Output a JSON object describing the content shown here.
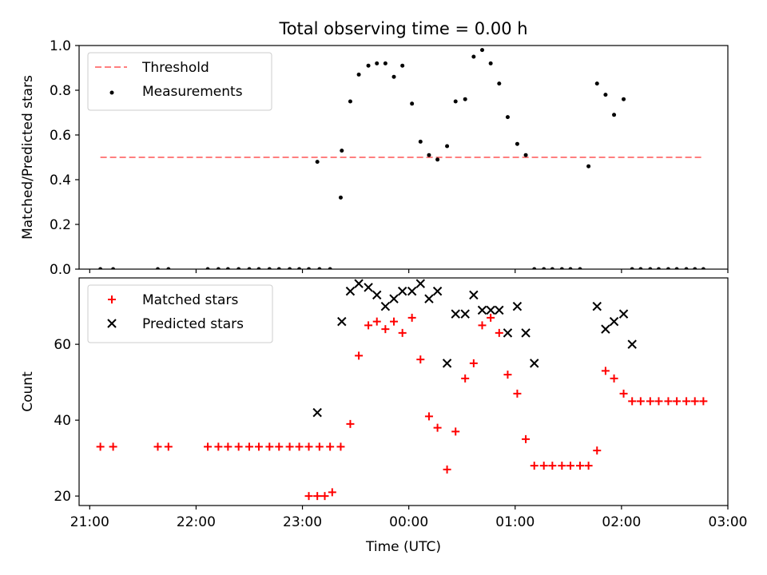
{
  "title": "Total observing time = 0.00 h",
  "chart_data": [
    {
      "type": "scatter",
      "ylabel": "Matched/Predicted stars",
      "xlabel": "",
      "xlim": [
        -3.1,
        3.0
      ],
      "ylim": [
        0,
        1.0
      ],
      "xticks": [
        -3,
        -2,
        -1,
        0,
        1,
        2,
        3
      ],
      "xtick_labels": [
        "21:00",
        "22:00",
        "23:00",
        "00:00",
        "01:00",
        "02:00",
        "03:00"
      ],
      "yticks": [
        0,
        0.2,
        0.4,
        0.6,
        0.8,
        1.0
      ],
      "ytick_labels": [
        "0.0",
        "0.2",
        "0.4",
        "0.6",
        "0.8",
        "1.0"
      ],
      "legend_position": "top-left",
      "threshold": {
        "name": "Threshold",
        "y": 0.5,
        "x_range": [
          -2.9,
          2.77
        ],
        "color": "#ff7f7f"
      },
      "series": [
        {
          "name": "Measurements",
          "color": "#000000",
          "x": [
            -2.9,
            -2.78,
            -2.36,
            -2.26,
            -1.89,
            -1.79,
            -1.7,
            -1.6,
            -1.5,
            -1.41,
            -1.31,
            -1.22,
            -1.12,
            -1.03,
            -0.94,
            -0.84,
            -0.74,
            -0.64,
            -0.86,
            -0.63,
            -0.55,
            -0.47,
            -0.38,
            -0.3,
            -0.22,
            -0.14,
            -0.06,
            0.03,
            0.11,
            0.19,
            0.27,
            0.36,
            0.44,
            0.53,
            0.61,
            0.69,
            0.77,
            0.85,
            0.93,
            1.02,
            1.1,
            1.18,
            1.27,
            1.35,
            1.44,
            1.52,
            1.61,
            1.69,
            1.77,
            1.85,
            1.93,
            2.02,
            2.1,
            2.18,
            2.27,
            2.35,
            2.44,
            2.52,
            2.61,
            2.69,
            2.77
          ],
          "y": [
            0,
            0,
            0,
            0,
            0,
            0,
            0,
            0,
            0,
            0,
            0,
            0,
            0,
            0,
            0,
            0,
            0,
            0.32,
            0.48,
            0.53,
            0.75,
            0.87,
            0.91,
            0.92,
            0.92,
            0.86,
            0.91,
            0.74,
            0.57,
            0.51,
            0.49,
            0.55,
            0.75,
            0.76,
            0.95,
            0.98,
            0.92,
            0.83,
            0.68,
            0.56,
            0.51,
            0,
            0,
            0,
            0,
            0,
            0,
            0.46,
            0.83,
            0.78,
            0.69,
            0.76,
            0,
            0,
            0,
            0,
            0,
            0,
            0,
            0,
            0
          ]
        }
      ]
    },
    {
      "type": "scatter",
      "ylabel": "Count",
      "xlabel": "Time (UTC)",
      "xlim": [
        -3.1,
        3.0
      ],
      "ylim": [
        17.5,
        77.5
      ],
      "xticks": [
        -3,
        -2,
        -1,
        0,
        1,
        2,
        3
      ],
      "xtick_labels": [
        "21:00",
        "22:00",
        "23:00",
        "00:00",
        "01:00",
        "02:00",
        "03:00"
      ],
      "yticks": [
        20,
        40,
        60
      ],
      "ytick_labels": [
        "20",
        "40",
        "60"
      ],
      "legend_position": "top-left",
      "series": [
        {
          "name": "Matched stars",
          "marker": "plus",
          "color": "#ff0000",
          "x": [
            -2.9,
            -2.78,
            -2.36,
            -2.26,
            -1.89,
            -1.79,
            -1.7,
            -1.6,
            -1.5,
            -1.41,
            -1.31,
            -1.22,
            -1.12,
            -1.03,
            -0.94,
            -0.84,
            -0.74,
            -0.64,
            -0.94,
            -0.86,
            -0.79,
            -0.72,
            -0.55,
            -0.47,
            -0.38,
            -0.3,
            -0.22,
            -0.14,
            -0.06,
            0.03,
            0.11,
            0.19,
            0.27,
            0.36,
            0.44,
            0.53,
            0.61,
            0.69,
            0.77,
            0.85,
            0.93,
            1.02,
            1.1,
            1.18,
            1.27,
            1.35,
            1.44,
            1.52,
            1.61,
            1.69,
            1.77,
            1.85,
            1.93,
            2.02,
            2.1,
            2.18,
            2.27,
            2.35,
            2.44,
            2.52,
            2.61,
            2.69,
            2.77
          ],
          "y": [
            33,
            33,
            33,
            33,
            33,
            33,
            33,
            33,
            33,
            33,
            33,
            33,
            33,
            33,
            33,
            33,
            33,
            33,
            20,
            20,
            20,
            21,
            39,
            57,
            65,
            66,
            64,
            66,
            63,
            67,
            56,
            41,
            38,
            27,
            37,
            51,
            55,
            65,
            67,
            63,
            52,
            47,
            35,
            28,
            28,
            28,
            28,
            28,
            28,
            28,
            32,
            53,
            51,
            47,
            45,
            45,
            45,
            45,
            45,
            45,
            45,
            45,
            45
          ]
        },
        {
          "name": "Predicted stars",
          "marker": "x",
          "color": "#000000",
          "x": [
            -0.86,
            -0.63,
            -0.55,
            -0.47,
            -0.38,
            -0.3,
            -0.22,
            -0.14,
            -0.06,
            0.03,
            0.11,
            0.19,
            0.27,
            0.36,
            0.44,
            0.53,
            0.61,
            0.69,
            0.77,
            0.85,
            0.93,
            1.02,
            1.1,
            1.18,
            1.77,
            1.85,
            1.93,
            2.02,
            2.1
          ],
          "y": [
            42,
            66,
            74,
            76,
            75,
            73,
            70,
            72,
            74,
            74,
            76,
            72,
            74,
            55,
            68,
            68,
            73,
            69,
            69,
            69,
            63,
            70,
            63,
            55,
            70,
            64,
            66,
            68,
            60
          ]
        }
      ]
    }
  ]
}
